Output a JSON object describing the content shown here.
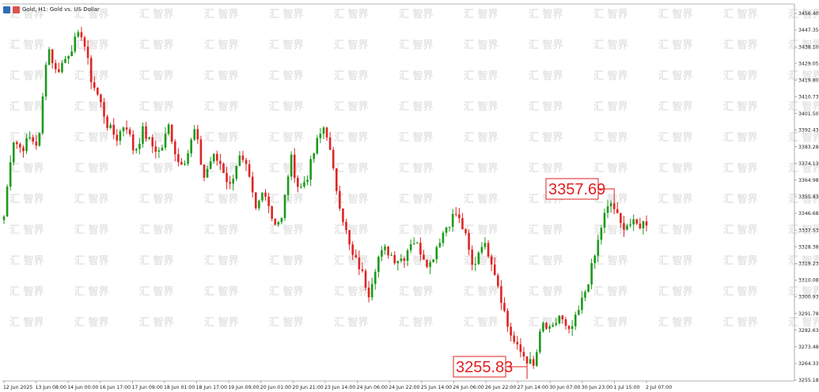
{
  "header": {
    "title": "Gold, H1:  Gold vs. US Dollar"
  },
  "watermark": {
    "text": "汇 智界"
  },
  "chart_data": {
    "type": "candlestick",
    "title": "Gold, H1:  Gold vs. US Dollar",
    "symbol": "Gold",
    "timeframe": "H1",
    "grid": false,
    "price_axis": {
      "side": "right",
      "ylim": [
        3250.5,
        3458.5
      ],
      "ticks": [
        "3456.40",
        "3447.35",
        "3438.10",
        "3429.05",
        "3419.80",
        "3410.73",
        "3401.50",
        "3392.43",
        "3383.28",
        "3374.13",
        "3364.98",
        "3355.83",
        "3346.68",
        "3337.53",
        "3328.38",
        "3319.23",
        "3310.08",
        "3300.93",
        "3291.78",
        "3282.63",
        "3273.48",
        "3264.33",
        "3255.18"
      ]
    },
    "time_axis": {
      "labels": [
        "12 Jun 2025",
        "13 Jun 08:00",
        "14 Jun 00:00",
        "16 Jun 17:00",
        "17 Jun 09:00",
        "18 Jun 01:00",
        "18 Jun 17:00",
        "19 Jun 09:00",
        "20 Jun 01:00",
        "20 Jun 21:00",
        "23 Jun 14:00",
        "24 Jun 06:00",
        "24 Jun 22:00",
        "25 Jun 14:00",
        "26 Jun 06:00",
        "26 Jun 22:00",
        "27 Jun 14:00",
        "30 Jun 07:00",
        "30 Jun 23:00",
        "1 Jul 15:00",
        "2 Jul 07:00"
      ]
    },
    "price_path": [
      3345,
      3388,
      3382,
      3388,
      3384,
      3440,
      3424,
      3431,
      3440,
      3446,
      3421,
      3409,
      3394,
      3388,
      3397,
      3380,
      3392,
      3384,
      3380,
      3395,
      3375,
      3377,
      3393,
      3366,
      3378,
      3374,
      3361,
      3378,
      3370,
      3348,
      3361,
      3342,
      3343,
      3378,
      3359,
      3368,
      3385,
      3396,
      3367,
      3345,
      3324,
      3317,
      3303,
      3322,
      3327,
      3322,
      3322,
      3333,
      3326,
      3318,
      3331,
      3340,
      3347,
      3337,
      3316,
      3331,
      3324,
      3306,
      3285,
      3273,
      3268,
      3262,
      3286,
      3281,
      3291,
      3280,
      3290,
      3305,
      3322,
      3344,
      3353,
      3340,
      3341,
      3340,
      3342
    ],
    "highlights": [
      {
        "label": "3357.69",
        "value": 3357.69,
        "kind": "high"
      },
      {
        "label": "3255.83",
        "value": 3255.83,
        "kind": "low"
      }
    ],
    "colors": {
      "bull": "#1c9a1c",
      "bear": "#e02424",
      "axis": "#9a9a9a",
      "text": "#222222",
      "callout": "#e02020"
    }
  }
}
